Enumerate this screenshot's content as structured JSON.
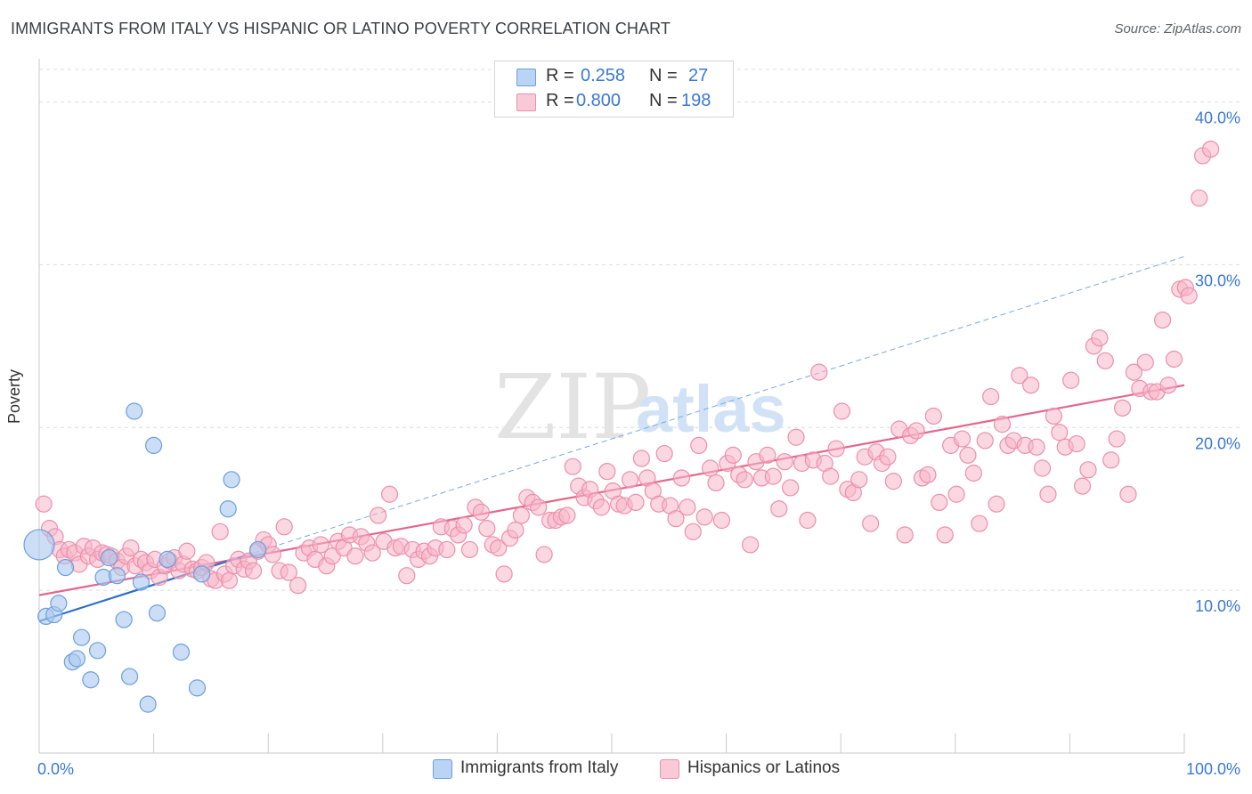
{
  "title": "IMMIGRANTS FROM ITALY VS HISPANIC OR LATINO POVERTY CORRELATION CHART",
  "source": "Source: ZipAtlas.com",
  "watermark": {
    "zip": "ZIP",
    "atlas": "atlas"
  },
  "stats": {
    "italy": {
      "r_label": "R =",
      "r_value": "0.258",
      "n_label": "N =",
      "n_value": "27"
    },
    "hispanic": {
      "r_label": "R =",
      "r_value": "0.800",
      "n_label": "N =",
      "n_value": "198"
    }
  },
  "colors": {
    "italy_fill": "#a8c8f0",
    "italy_stroke": "#6b9fdc",
    "italy_line": "#2c6fcc",
    "hispanic_fill": "#f7b6c9",
    "hispanic_stroke": "#ec8fab",
    "hispanic_line": "#e4668e",
    "tick_text": "#3a78d4",
    "grid": "#dadce0"
  },
  "chart_data": {
    "type": "scatter",
    "title": "IMMIGRANTS FROM ITALY VS HISPANIC OR LATINO POVERTY CORRELATION CHART",
    "xlabel": "",
    "ylabel": "Poverty",
    "xlim": [
      0,
      100
    ],
    "ylim": [
      0,
      42
    ],
    "x_tick_labels": [
      "0.0%",
      "100.0%"
    ],
    "y_ticks": [
      10,
      20,
      30,
      40
    ],
    "y_tick_labels": [
      "10.0%",
      "20.0%",
      "30.0%",
      "40.0%"
    ],
    "legend": [
      "Immigrants from Italy",
      "Hispanics or Latinos"
    ],
    "series": [
      {
        "name": "Immigrants from Italy",
        "r": 0.258,
        "n": 27,
        "trend": {
          "x0": 0,
          "y0": 8.1,
          "x1": 100,
          "y1": 30.5,
          "solid_until_x": 18
        },
        "points": [
          [
            0,
            12.8
          ],
          [
            0.6,
            8.4
          ],
          [
            1.3,
            8.5
          ],
          [
            1.7,
            9.2
          ],
          [
            2.3,
            11.4
          ],
          [
            2.9,
            5.6
          ],
          [
            3.3,
            5.8
          ],
          [
            3.7,
            7.1
          ],
          [
            4.5,
            4.5
          ],
          [
            5.1,
            6.3
          ],
          [
            5.6,
            10.8
          ],
          [
            6.1,
            12.0
          ],
          [
            6.8,
            10.9
          ],
          [
            7.4,
            8.2
          ],
          [
            7.9,
            4.7
          ],
          [
            8.3,
            21.0
          ],
          [
            8.9,
            10.5
          ],
          [
            9.5,
            3.0
          ],
          [
            10.0,
            18.9
          ],
          [
            10.3,
            8.6
          ],
          [
            11.2,
            11.9
          ],
          [
            12.4,
            6.2
          ],
          [
            13.8,
            4.0
          ],
          [
            14.2,
            11.0
          ],
          [
            16.5,
            15.0
          ],
          [
            16.8,
            16.8
          ],
          [
            19.1,
            12.5
          ]
        ]
      },
      {
        "name": "Hispanics or Latinos",
        "r": 0.8,
        "n": 198,
        "trend": {
          "x0": 0,
          "y0": 9.7,
          "x1": 100,
          "y1": 22.6
        },
        "points": [
          [
            0.4,
            15.3
          ],
          [
            0.9,
            13.8
          ],
          [
            1.4,
            13.3
          ],
          [
            1.8,
            12.5
          ],
          [
            2.2,
            12.1
          ],
          [
            2.6,
            12.5
          ],
          [
            3.1,
            12.3
          ],
          [
            3.5,
            11.6
          ],
          [
            3.9,
            12.7
          ],
          [
            4.3,
            12.1
          ],
          [
            4.7,
            12.6
          ],
          [
            5.1,
            11.9
          ],
          [
            5.5,
            12.3
          ],
          [
            5.9,
            12.2
          ],
          [
            6.3,
            12.1
          ],
          [
            6.8,
            11.8
          ],
          [
            7.2,
            11.4
          ],
          [
            7.6,
            12.1
          ],
          [
            8.0,
            12.6
          ],
          [
            8.4,
            11.5
          ],
          [
            8.9,
            11.9
          ],
          [
            9.3,
            11.7
          ],
          [
            9.7,
            11.2
          ],
          [
            10.1,
            11.9
          ],
          [
            10.5,
            10.8
          ],
          [
            11.0,
            11.5
          ],
          [
            11.4,
            11.8
          ],
          [
            11.8,
            12.0
          ],
          [
            12.2,
            11.2
          ],
          [
            12.6,
            11.6
          ],
          [
            12.9,
            12.4
          ],
          [
            13.4,
            11.3
          ],
          [
            13.8,
            11.2
          ],
          [
            14.2,
            11.4
          ],
          [
            14.6,
            11.7
          ],
          [
            15.0,
            10.7
          ],
          [
            15.4,
            10.6
          ],
          [
            15.8,
            13.6
          ],
          [
            16.2,
            11.0
          ],
          [
            16.6,
            10.6
          ],
          [
            17.0,
            11.5
          ],
          [
            17.4,
            11.9
          ],
          [
            17.9,
            11.3
          ],
          [
            18.3,
            11.8
          ],
          [
            18.7,
            11.2
          ],
          [
            19.1,
            12.4
          ],
          [
            19.6,
            13.1
          ],
          [
            20.0,
            12.8
          ],
          [
            20.4,
            12.2
          ],
          [
            21.0,
            11.2
          ],
          [
            21.4,
            13.9
          ],
          [
            21.8,
            11.1
          ],
          [
            22.6,
            10.3
          ],
          [
            23.1,
            12.3
          ],
          [
            23.6,
            12.6
          ],
          [
            24.1,
            11.9
          ],
          [
            24.6,
            12.8
          ],
          [
            25.1,
            11.5
          ],
          [
            25.6,
            12.1
          ],
          [
            26.1,
            13.0
          ],
          [
            26.6,
            12.6
          ],
          [
            27.1,
            13.4
          ],
          [
            27.6,
            12.1
          ],
          [
            28.1,
            13.3
          ],
          [
            28.6,
            12.9
          ],
          [
            29.1,
            12.3
          ],
          [
            29.6,
            14.6
          ],
          [
            30.1,
            13.0
          ],
          [
            30.6,
            15.9
          ],
          [
            31.1,
            12.6
          ],
          [
            31.6,
            12.7
          ],
          [
            32.1,
            10.9
          ],
          [
            32.6,
            12.5
          ],
          [
            33.1,
            11.9
          ],
          [
            33.6,
            12.4
          ],
          [
            34.1,
            12.1
          ],
          [
            34.6,
            12.6
          ],
          [
            35.1,
            13.9
          ],
          [
            35.6,
            12.5
          ],
          [
            36.1,
            13.8
          ],
          [
            36.6,
            13.4
          ],
          [
            37.1,
            14.0
          ],
          [
            37.6,
            12.5
          ],
          [
            38.1,
            15.1
          ],
          [
            38.6,
            14.8
          ],
          [
            39.1,
            13.8
          ],
          [
            39.6,
            12.8
          ],
          [
            40.1,
            12.6
          ],
          [
            40.6,
            11.0
          ],
          [
            41.1,
            13.2
          ],
          [
            41.6,
            13.7
          ],
          [
            42.1,
            14.6
          ],
          [
            42.6,
            15.7
          ],
          [
            43.1,
            15.4
          ],
          [
            43.6,
            15.1
          ],
          [
            44.1,
            12.2
          ],
          [
            44.6,
            14.3
          ],
          [
            45.1,
            14.3
          ],
          [
            45.6,
            14.5
          ],
          [
            46.1,
            14.6
          ],
          [
            46.6,
            17.6
          ],
          [
            47.1,
            16.4
          ],
          [
            47.6,
            15.7
          ],
          [
            48.1,
            16.2
          ],
          [
            48.6,
            15.5
          ],
          [
            49.1,
            15.1
          ],
          [
            49.6,
            17.3
          ],
          [
            50.1,
            16.1
          ],
          [
            50.6,
            15.3
          ],
          [
            51.1,
            15.2
          ],
          [
            51.6,
            16.8
          ],
          [
            52.1,
            15.4
          ],
          [
            52.6,
            18.1
          ],
          [
            53.1,
            16.9
          ],
          [
            53.6,
            16.1
          ],
          [
            54.1,
            15.3
          ],
          [
            54.6,
            18.4
          ],
          [
            55.1,
            15.2
          ],
          [
            55.6,
            14.4
          ],
          [
            56.1,
            16.9
          ],
          [
            56.6,
            15.1
          ],
          [
            57.1,
            13.6
          ],
          [
            57.6,
            18.9
          ],
          [
            58.1,
            14.5
          ],
          [
            58.6,
            17.5
          ],
          [
            59.1,
            16.6
          ],
          [
            59.6,
            14.3
          ],
          [
            60.1,
            17.8
          ],
          [
            60.6,
            18.3
          ],
          [
            61.1,
            17.1
          ],
          [
            61.6,
            16.8
          ],
          [
            62.1,
            12.8
          ],
          [
            62.6,
            17.9
          ],
          [
            63.1,
            16.9
          ],
          [
            63.6,
            18.3
          ],
          [
            64.1,
            17.0
          ],
          [
            64.6,
            15.0
          ],
          [
            65.1,
            17.9
          ],
          [
            65.6,
            16.3
          ],
          [
            66.1,
            19.4
          ],
          [
            66.6,
            17.8
          ],
          [
            67.1,
            14.3
          ],
          [
            67.6,
            18.0
          ],
          [
            68.1,
            23.4
          ],
          [
            68.6,
            17.8
          ],
          [
            69.1,
            17.0
          ],
          [
            69.6,
            18.7
          ],
          [
            70.1,
            21.0
          ],
          [
            70.6,
            16.2
          ],
          [
            71.1,
            16.0
          ],
          [
            71.6,
            16.8
          ],
          [
            72.1,
            18.2
          ],
          [
            72.6,
            14.1
          ],
          [
            73.1,
            18.5
          ],
          [
            73.6,
            17.8
          ],
          [
            74.1,
            18.2
          ],
          [
            74.6,
            16.7
          ],
          [
            75.1,
            19.9
          ],
          [
            75.6,
            13.4
          ],
          [
            76.1,
            19.5
          ],
          [
            76.6,
            19.8
          ],
          [
            77.1,
            16.9
          ],
          [
            77.6,
            17.1
          ],
          [
            78.1,
            20.7
          ],
          [
            78.6,
            15.4
          ],
          [
            79.1,
            13.4
          ],
          [
            79.6,
            18.9
          ],
          [
            80.1,
            15.9
          ],
          [
            80.6,
            19.3
          ],
          [
            81.1,
            18.3
          ],
          [
            81.6,
            17.2
          ],
          [
            82.1,
            14.1
          ],
          [
            82.6,
            19.2
          ],
          [
            83.1,
            21.9
          ],
          [
            83.6,
            15.3
          ],
          [
            84.1,
            20.2
          ],
          [
            84.6,
            18.9
          ],
          [
            85.1,
            19.2
          ],
          [
            85.6,
            23.2
          ],
          [
            86.1,
            18.9
          ],
          [
            86.6,
            22.6
          ],
          [
            87.1,
            18.8
          ],
          [
            87.6,
            17.5
          ],
          [
            88.1,
            15.9
          ],
          [
            88.6,
            20.7
          ],
          [
            89.1,
            19.7
          ],
          [
            89.6,
            18.8
          ],
          [
            90.1,
            22.9
          ],
          [
            90.6,
            19.0
          ],
          [
            91.1,
            16.4
          ],
          [
            91.6,
            17.4
          ],
          [
            92.1,
            25.0
          ],
          [
            92.6,
            25.5
          ],
          [
            93.1,
            24.1
          ],
          [
            93.6,
            18.0
          ],
          [
            94.1,
            19.3
          ],
          [
            94.6,
            21.2
          ],
          [
            95.1,
            15.9
          ],
          [
            95.6,
            23.4
          ],
          [
            96.1,
            22.4
          ],
          [
            96.6,
            24.0
          ],
          [
            97.1,
            22.2
          ],
          [
            97.6,
            22.2
          ],
          [
            98.1,
            26.6
          ],
          [
            98.6,
            22.6
          ],
          [
            99.1,
            24.2
          ],
          [
            99.6,
            28.5
          ],
          [
            100.1,
            28.6
          ],
          [
            100.4,
            28.1
          ],
          [
            101.3,
            34.1
          ],
          [
            101.6,
            36.7
          ],
          [
            102.3,
            37.1
          ]
        ]
      }
    ]
  },
  "legend_labels": {
    "italy": "Immigrants from Italy",
    "hispanic": "Hispanics or Latinos"
  }
}
